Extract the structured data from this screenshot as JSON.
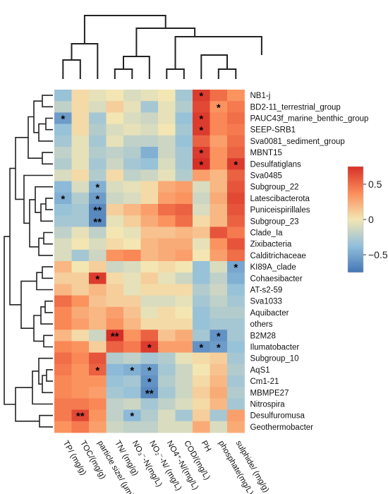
{
  "chart_data": {
    "type": "heatmap",
    "title": "",
    "xlabel": "",
    "ylabel": "",
    "columns": [
      "TP/ (mg/g)",
      "TOC/(mg/g)",
      "particle size/ (μm)",
      "TN/ (mg/g)",
      "NO₃⁻-N(mg/L)",
      "NO₂⁻-N/ (mg/L)",
      "NO4⁺-N/(mg/L)",
      "COD/(mg/L)",
      "PH",
      "phosphate(mg/L)",
      "sulphide/ (mg/g)"
    ],
    "rows": [
      "NB1-j",
      "BD2-11_terrestrial_group",
      "PAUC43f_marine_benthic_group",
      "SEEP-SRB1",
      "Sva0081_sediment_group",
      "MBNT15",
      "Desulfatiglans",
      "Sva0485",
      "Subgroup_22",
      "Latescibacterota",
      "Puniceispirillales",
      "Subgroup_23",
      "Clade_Ia",
      "Zixibacteria",
      "Calditrichaceae",
      "KI89A_clade",
      "Cohaesibacter",
      "AT-s2-59",
      "Sva1033",
      "Aquibacter",
      "others",
      "B2M28",
      "Ilumatobacter",
      "Subgroup_10",
      "AqS1",
      "Cm1-21",
      "MBMPE27",
      "Nitrospira",
      "Desulfuromusa",
      "Geothermobacter"
    ],
    "values": [
      [
        -0.35,
        0.05,
        -0.05,
        0.0,
        -0.1,
        -0.05,
        0.0,
        -0.3,
        0.7,
        0.5,
        0.35
      ],
      [
        -0.2,
        0.05,
        -0.1,
        0.1,
        -0.05,
        -0.3,
        -0.05,
        -0.25,
        0.65,
        0.35,
        0.45
      ],
      [
        -0.55,
        0.05,
        -0.3,
        0.0,
        -0.1,
        -0.15,
        -0.05,
        -0.35,
        0.7,
        0.4,
        0.5
      ],
      [
        -0.35,
        0.05,
        -0.25,
        -0.1,
        -0.05,
        -0.1,
        0.0,
        -0.3,
        0.7,
        0.4,
        0.45
      ],
      [
        -0.3,
        -0.05,
        -0.3,
        -0.05,
        -0.2,
        -0.2,
        -0.15,
        -0.35,
        0.55,
        0.3,
        0.5
      ],
      [
        -0.2,
        -0.05,
        -0.25,
        -0.2,
        -0.25,
        -0.45,
        -0.15,
        -0.3,
        0.7,
        0.35,
        0.55
      ],
      [
        -0.25,
        -0.05,
        -0.3,
        -0.15,
        -0.3,
        -0.35,
        -0.1,
        -0.3,
        0.75,
        0.35,
        0.7
      ],
      [
        -0.1,
        0.05,
        -0.25,
        0.05,
        -0.2,
        -0.15,
        -0.05,
        -0.25,
        0.3,
        0.2,
        0.55
      ],
      [
        -0.4,
        -0.1,
        -0.45,
        -0.1,
        -0.05,
        0.05,
        0.25,
        0.3,
        -0.1,
        0.2,
        0.6
      ],
      [
        -0.45,
        -0.25,
        -0.55,
        -0.15,
        -0.1,
        0.05,
        0.3,
        0.35,
        -0.15,
        0.25,
        0.65
      ],
      [
        -0.35,
        -0.3,
        -0.65,
        0.1,
        0.2,
        0.3,
        0.5,
        0.55,
        -0.1,
        0.2,
        0.6
      ],
      [
        -0.3,
        -0.3,
        -0.65,
        -0.05,
        0.1,
        0.25,
        0.35,
        0.5,
        0.05,
        0.2,
        0.55
      ],
      [
        -0.2,
        -0.05,
        -0.2,
        0.0,
        -0.05,
        0.15,
        0.15,
        0.2,
        0.15,
        0.6,
        0.45
      ],
      [
        -0.1,
        0.0,
        -0.1,
        0.05,
        0.0,
        0.2,
        0.25,
        0.25,
        -0.05,
        0.35,
        0.6
      ],
      [
        -0.1,
        -0.3,
        -0.15,
        0.35,
        0.4,
        0.2,
        0.25,
        0.3,
        0.0,
        0.3,
        0.5
      ],
      [
        0.2,
        0.0,
        0.1,
        -0.15,
        -0.1,
        0.0,
        0.05,
        0.0,
        -0.35,
        -0.1,
        -0.5
      ],
      [
        0.1,
        0.1,
        0.7,
        0.05,
        -0.05,
        0.1,
        -0.05,
        -0.15,
        -0.35,
        -0.2,
        -0.45
      ],
      [
        0.2,
        0.1,
        0.2,
        0.1,
        -0.05,
        0.05,
        0.05,
        0.05,
        -0.25,
        -0.15,
        -0.35
      ],
      [
        0.5,
        0.35,
        0.15,
        0.1,
        0.1,
        -0.1,
        -0.1,
        -0.05,
        -0.3,
        -0.2,
        -0.3
      ],
      [
        0.4,
        0.25,
        0.2,
        0.3,
        0.15,
        -0.05,
        0.05,
        0.0,
        -0.35,
        -0.25,
        -0.25
      ],
      [
        0.4,
        0.3,
        0.2,
        0.35,
        0.2,
        0.05,
        0.05,
        0.05,
        -0.35,
        -0.3,
        -0.3
      ],
      [
        0.2,
        0.05,
        -0.15,
        0.75,
        0.35,
        0.55,
        0.15,
        0.25,
        -0.3,
        -0.6,
        -0.3
      ],
      [
        0.4,
        0.35,
        0.1,
        0.55,
        0.45,
        0.7,
        0.3,
        0.3,
        -0.6,
        -0.55,
        -0.35
      ],
      [
        0.5,
        0.4,
        0.6,
        -0.25,
        -0.2,
        -0.3,
        -0.25,
        -0.05,
        0.05,
        0.1,
        -0.3
      ],
      [
        0.45,
        0.35,
        0.55,
        -0.4,
        -0.45,
        -0.55,
        -0.3,
        -0.15,
        0.0,
        0.15,
        -0.25
      ],
      [
        0.4,
        0.35,
        0.35,
        -0.35,
        -0.3,
        -0.6,
        -0.25,
        -0.15,
        0.05,
        0.2,
        -0.3
      ],
      [
        0.4,
        0.35,
        0.3,
        -0.3,
        -0.35,
        -0.65,
        -0.3,
        -0.15,
        0.1,
        0.25,
        -0.25
      ],
      [
        0.45,
        0.45,
        0.4,
        -0.2,
        -0.15,
        -0.3,
        -0.2,
        -0.1,
        0.05,
        0.2,
        -0.3
      ],
      [
        0.45,
        0.65,
        0.35,
        -0.2,
        -0.4,
        -0.25,
        -0.1,
        -0.3,
        0.1,
        -0.3,
        0.3
      ],
      [
        0.35,
        0.45,
        0.3,
        -0.15,
        -0.2,
        -0.2,
        -0.1,
        -0.1,
        0.25,
        -0.1,
        0.25
      ]
    ],
    "significance": [
      {
        "row": 0,
        "col": 8,
        "mark": "*"
      },
      {
        "row": 1,
        "col": 9,
        "mark": "*"
      },
      {
        "row": 2,
        "col": 0,
        "mark": "*"
      },
      {
        "row": 2,
        "col": 8,
        "mark": "*"
      },
      {
        "row": 3,
        "col": 8,
        "mark": "*"
      },
      {
        "row": 5,
        "col": 8,
        "mark": "*"
      },
      {
        "row": 6,
        "col": 8,
        "mark": "*"
      },
      {
        "row": 6,
        "col": 10,
        "mark": "*"
      },
      {
        "row": 8,
        "col": 2,
        "mark": "*"
      },
      {
        "row": 9,
        "col": 0,
        "mark": "*"
      },
      {
        "row": 9,
        "col": 2,
        "mark": "*"
      },
      {
        "row": 10,
        "col": 2,
        "mark": "**"
      },
      {
        "row": 11,
        "col": 2,
        "mark": "**"
      },
      {
        "row": 15,
        "col": 10,
        "mark": "*"
      },
      {
        "row": 16,
        "col": 2,
        "mark": "*"
      },
      {
        "row": 21,
        "col": 3,
        "mark": "**"
      },
      {
        "row": 21,
        "col": 9,
        "mark": "*"
      },
      {
        "row": 22,
        "col": 5,
        "mark": "*"
      },
      {
        "row": 22,
        "col": 8,
        "mark": "*"
      },
      {
        "row": 22,
        "col": 9,
        "mark": "*"
      },
      {
        "row": 24,
        "col": 2,
        "mark": "*"
      },
      {
        "row": 24,
        "col": 4,
        "mark": "*"
      },
      {
        "row": 24,
        "col": 5,
        "mark": "*"
      },
      {
        "row": 25,
        "col": 5,
        "mark": "*"
      },
      {
        "row": 26,
        "col": 5,
        "mark": "**"
      },
      {
        "row": 28,
        "col": 1,
        "mark": "**"
      },
      {
        "row": 28,
        "col": 4,
        "mark": "*"
      }
    ],
    "colorbar": {
      "min": -0.75,
      "max": 0.75,
      "ticks": [
        0.5,
        0,
        -0.5
      ],
      "tick_labels": [
        "0.5",
        "0",
        "−0.5"
      ],
      "colors": [
        "#4575b4",
        "#fdf0b0",
        "#d73027"
      ]
    },
    "grid": false,
    "legend": "right"
  }
}
